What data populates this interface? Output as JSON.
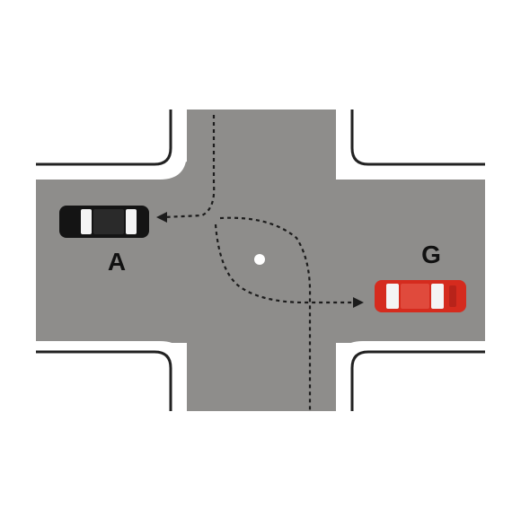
{
  "diagram": {
    "colors": {
      "background": "#ffffff",
      "road": "#8e8d8b",
      "curb": "#ffffff",
      "curb_outline": "#222222",
      "path_line": "#1c1c1c",
      "center_dot": "#ffffff",
      "car_a_body": "#141414",
      "car_g_body": "#d52b1e"
    },
    "vehicles": [
      {
        "id": "A",
        "label": "A",
        "body_color": "black",
        "heading": "left"
      },
      {
        "id": "G",
        "label": "G",
        "body_color": "red",
        "heading": "left"
      }
    ],
    "paths": [
      {
        "vehicle": "A",
        "description_words": "",
        "style": "dotted"
      },
      {
        "vehicle": "G",
        "description_words": "",
        "style": "dotted"
      }
    ]
  }
}
